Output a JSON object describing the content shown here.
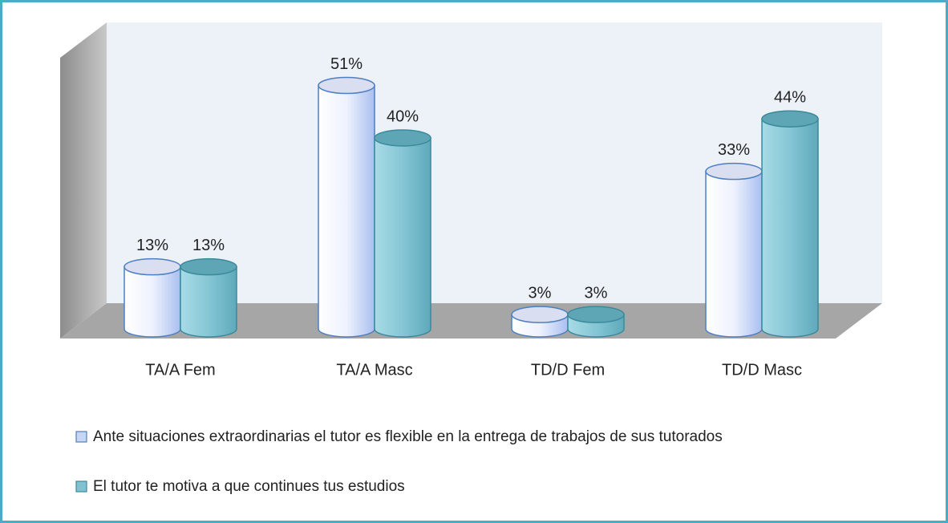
{
  "chart_data": {
    "type": "bar",
    "categories": [
      "TA/A Fem",
      "TA/A Masc",
      "TD/D Fem",
      "TD/D Masc"
    ],
    "series": [
      {
        "name": "Ante situaciones extraordinarias el tutor es flexible en la entrega de trabajos de sus tutorados",
        "color": "#c6d6f7",
        "values": [
          13,
          51,
          3,
          33
        ],
        "value_labels": [
          "13%",
          "51%",
          "3%",
          "33%"
        ]
      },
      {
        "name": "El tutor te motiva a que continues tus estudios",
        "color": "#7fc3d3",
        "values": [
          13,
          40,
          3,
          44
        ],
        "value_labels": [
          "13%",
          "40%",
          "3%",
          "44%"
        ]
      }
    ]
  }
}
